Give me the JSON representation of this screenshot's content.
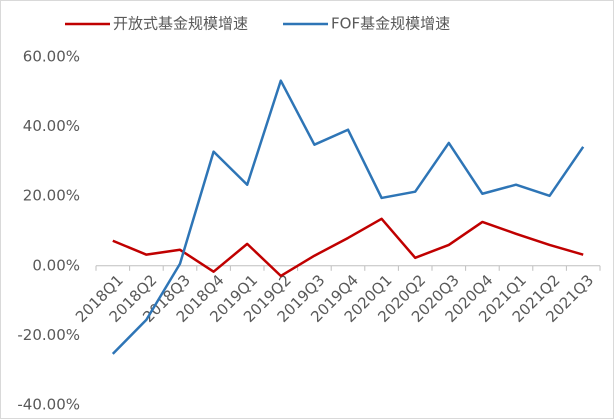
{
  "chart_data": {
    "type": "line",
    "categories": [
      "2018Q1",
      "2018Q2",
      "2018Q3",
      "2018Q4",
      "2019Q1",
      "2019Q2",
      "2019Q3",
      "2019Q4",
      "2020Q1",
      "2020Q2",
      "2020Q3",
      "2020Q4",
      "2021Q1",
      "2021Q2",
      "2021Q3"
    ],
    "series": [
      {
        "name": "开放式基金规模增速",
        "color": "#c00000",
        "values": [
          7.2,
          3.2,
          4.6,
          -1.7,
          6.3,
          -2.9,
          2.9,
          8.0,
          13.5,
          2.3,
          6.0,
          12.6,
          9.2,
          6.0,
          3.2
        ]
      },
      {
        "name": "FOF基金规模增速",
        "color": "#2e75b6",
        "values": [
          -25.3,
          -15.5,
          0.6,
          32.8,
          23.3,
          53.2,
          34.8,
          39.1,
          19.5,
          21.3,
          35.3,
          20.7,
          23.3,
          20.1,
          34.2
        ]
      }
    ],
    "ylim": [
      -40,
      60
    ],
    "yticks": [
      {
        "value": -40,
        "label": "-40.00%"
      },
      {
        "value": -20,
        "label": "-20.00%"
      },
      {
        "value": 0,
        "label": "0.00%"
      },
      {
        "value": 20,
        "label": "20.00%"
      },
      {
        "value": 40,
        "label": "40.00%"
      },
      {
        "value": 60,
        "label": "60.00%"
      }
    ],
    "legend": "top"
  }
}
